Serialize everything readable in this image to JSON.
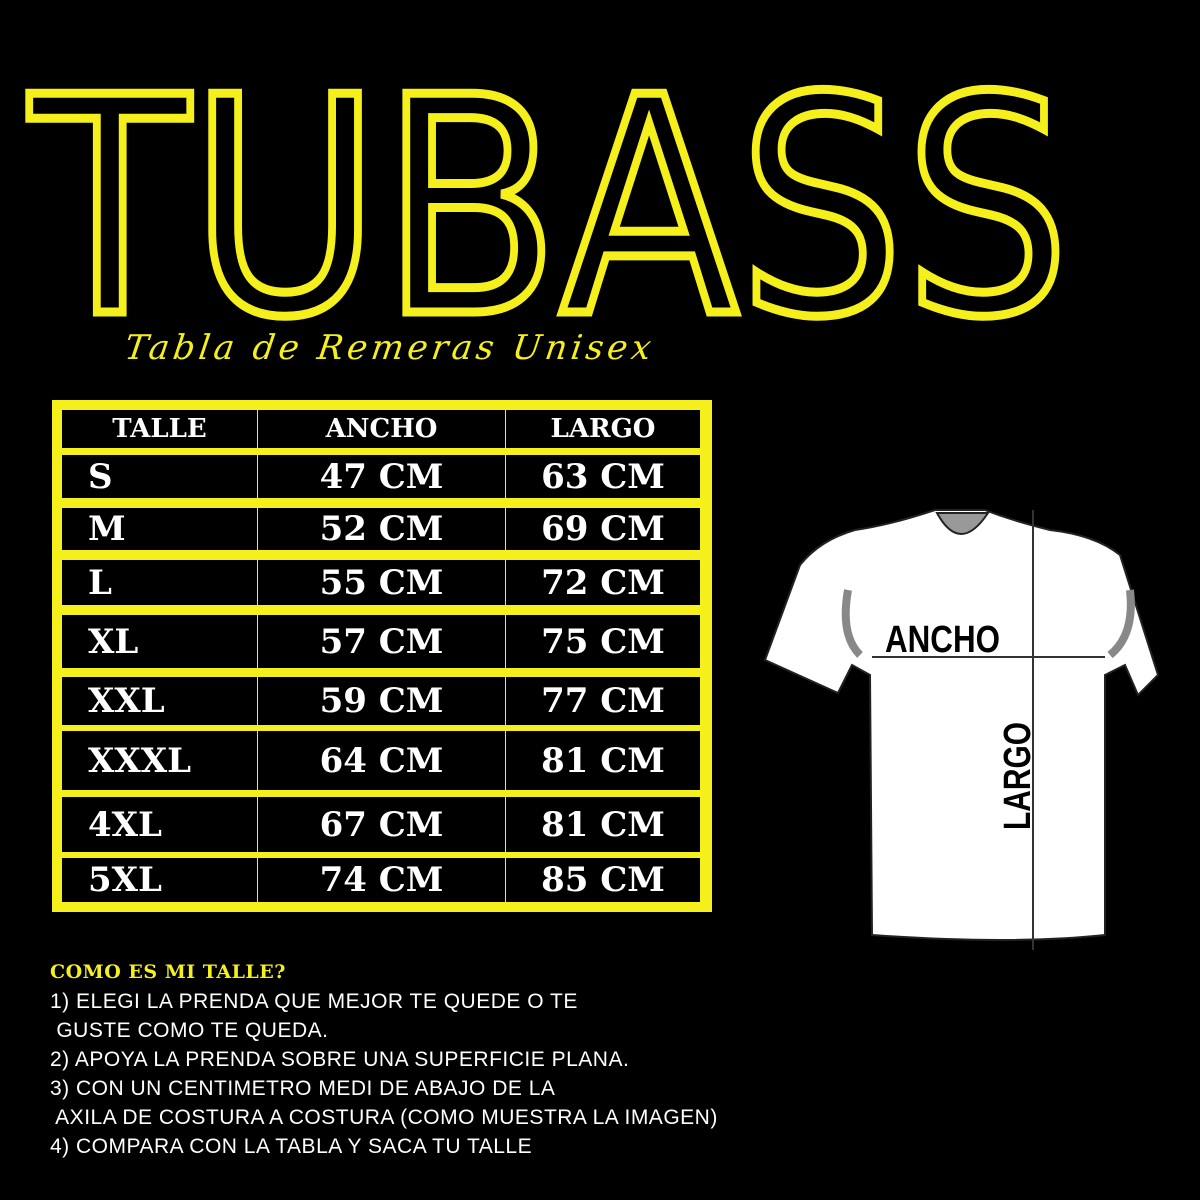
{
  "brand": {
    "logo_text": "TUBASS",
    "accent_color": "#f5f01c"
  },
  "subtitle": "Tabla de Remeras Unisex",
  "table": {
    "headers": [
      "TALLE",
      "ANCHO",
      "LARGO"
    ],
    "rows": [
      [
        "S",
        "47 CM",
        "63 CM"
      ],
      [
        "M",
        "52 CM",
        "69 CM"
      ],
      [
        "L",
        "55 CM",
        "72 CM"
      ],
      [
        "XL",
        "57 CM",
        "75 CM"
      ],
      [
        "XXL",
        "59 CM",
        "77 CM"
      ],
      [
        "XXXL",
        "64 CM",
        "81 CM"
      ],
      [
        "4XL",
        "67 CM",
        "81 CM"
      ],
      [
        "5XL",
        "74 CM",
        "85 CM"
      ]
    ]
  },
  "diagram": {
    "width_label": "ANCHO",
    "length_label": "LARGO"
  },
  "howto": {
    "title": "COMO ES MI TALLE?",
    "lines": [
      "1) ELEGI LA PRENDA QUE MEJOR TE QUEDE O TE",
      " GUSTE COMO TE QUEDA.",
      "2) APOYA LA PRENDA SOBRE UNA SUPERFICIE PLANA.",
      "3) CON UN CENTIMETRO MEDI DE ABAJO DE LA",
      " AXILA DE COSTURA A COSTURA (COMO MUESTRA LA IMAGEN)",
      "4) COMPARA CON LA TABLA Y SACA TU TALLE"
    ]
  }
}
